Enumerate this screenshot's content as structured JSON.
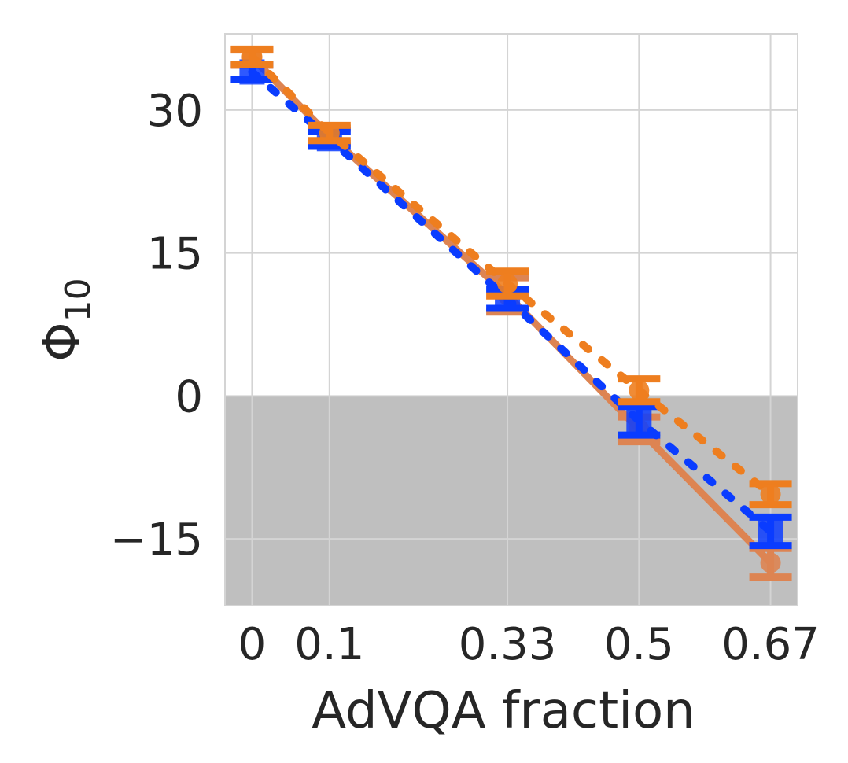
{
  "chart_data": {
    "type": "line",
    "title": "",
    "xlabel": "AdVQA fraction",
    "ylabel": "Φ",
    "ylabel_subscript": "10",
    "x": [
      0,
      0.1,
      0.33,
      0.5,
      0.67
    ],
    "x_tick_labels": [
      "0",
      "0.1",
      "0.33",
      "0.5",
      "0.67"
    ],
    "y_ticks": [
      30,
      15,
      0,
      -15
    ],
    "y_tick_labels": [
      "30",
      "15",
      "0",
      "−15"
    ],
    "xlim": [
      -0.035,
      0.705
    ],
    "ylim": [
      -22,
      38
    ],
    "grid": true,
    "shaded_region": {
      "from": -22,
      "to": 0,
      "color": "#bfbfbf"
    },
    "series": [
      {
        "style": "solid",
        "color": "#dd8452",
        "values": [
          35.5,
          27.3,
          10.6,
          -3.5,
          -17.5
        ],
        "errors": [
          0.8,
          0.8,
          1.8,
          1.3,
          1.5
        ]
      },
      {
        "style": "dotted",
        "color": "#0a3cff",
        "values": [
          34.0,
          27.0,
          10.2,
          -2.6,
          -14.2
        ],
        "errors": [
          0.8,
          0.8,
          1.0,
          1.5,
          1.5
        ]
      },
      {
        "style": "dotted",
        "color": "#ee7e1f",
        "values": [
          35.6,
          27.6,
          11.8,
          0.6,
          -10.3
        ],
        "errors": [
          0.8,
          0.8,
          1.3,
          1.2,
          1.1
        ]
      }
    ]
  }
}
